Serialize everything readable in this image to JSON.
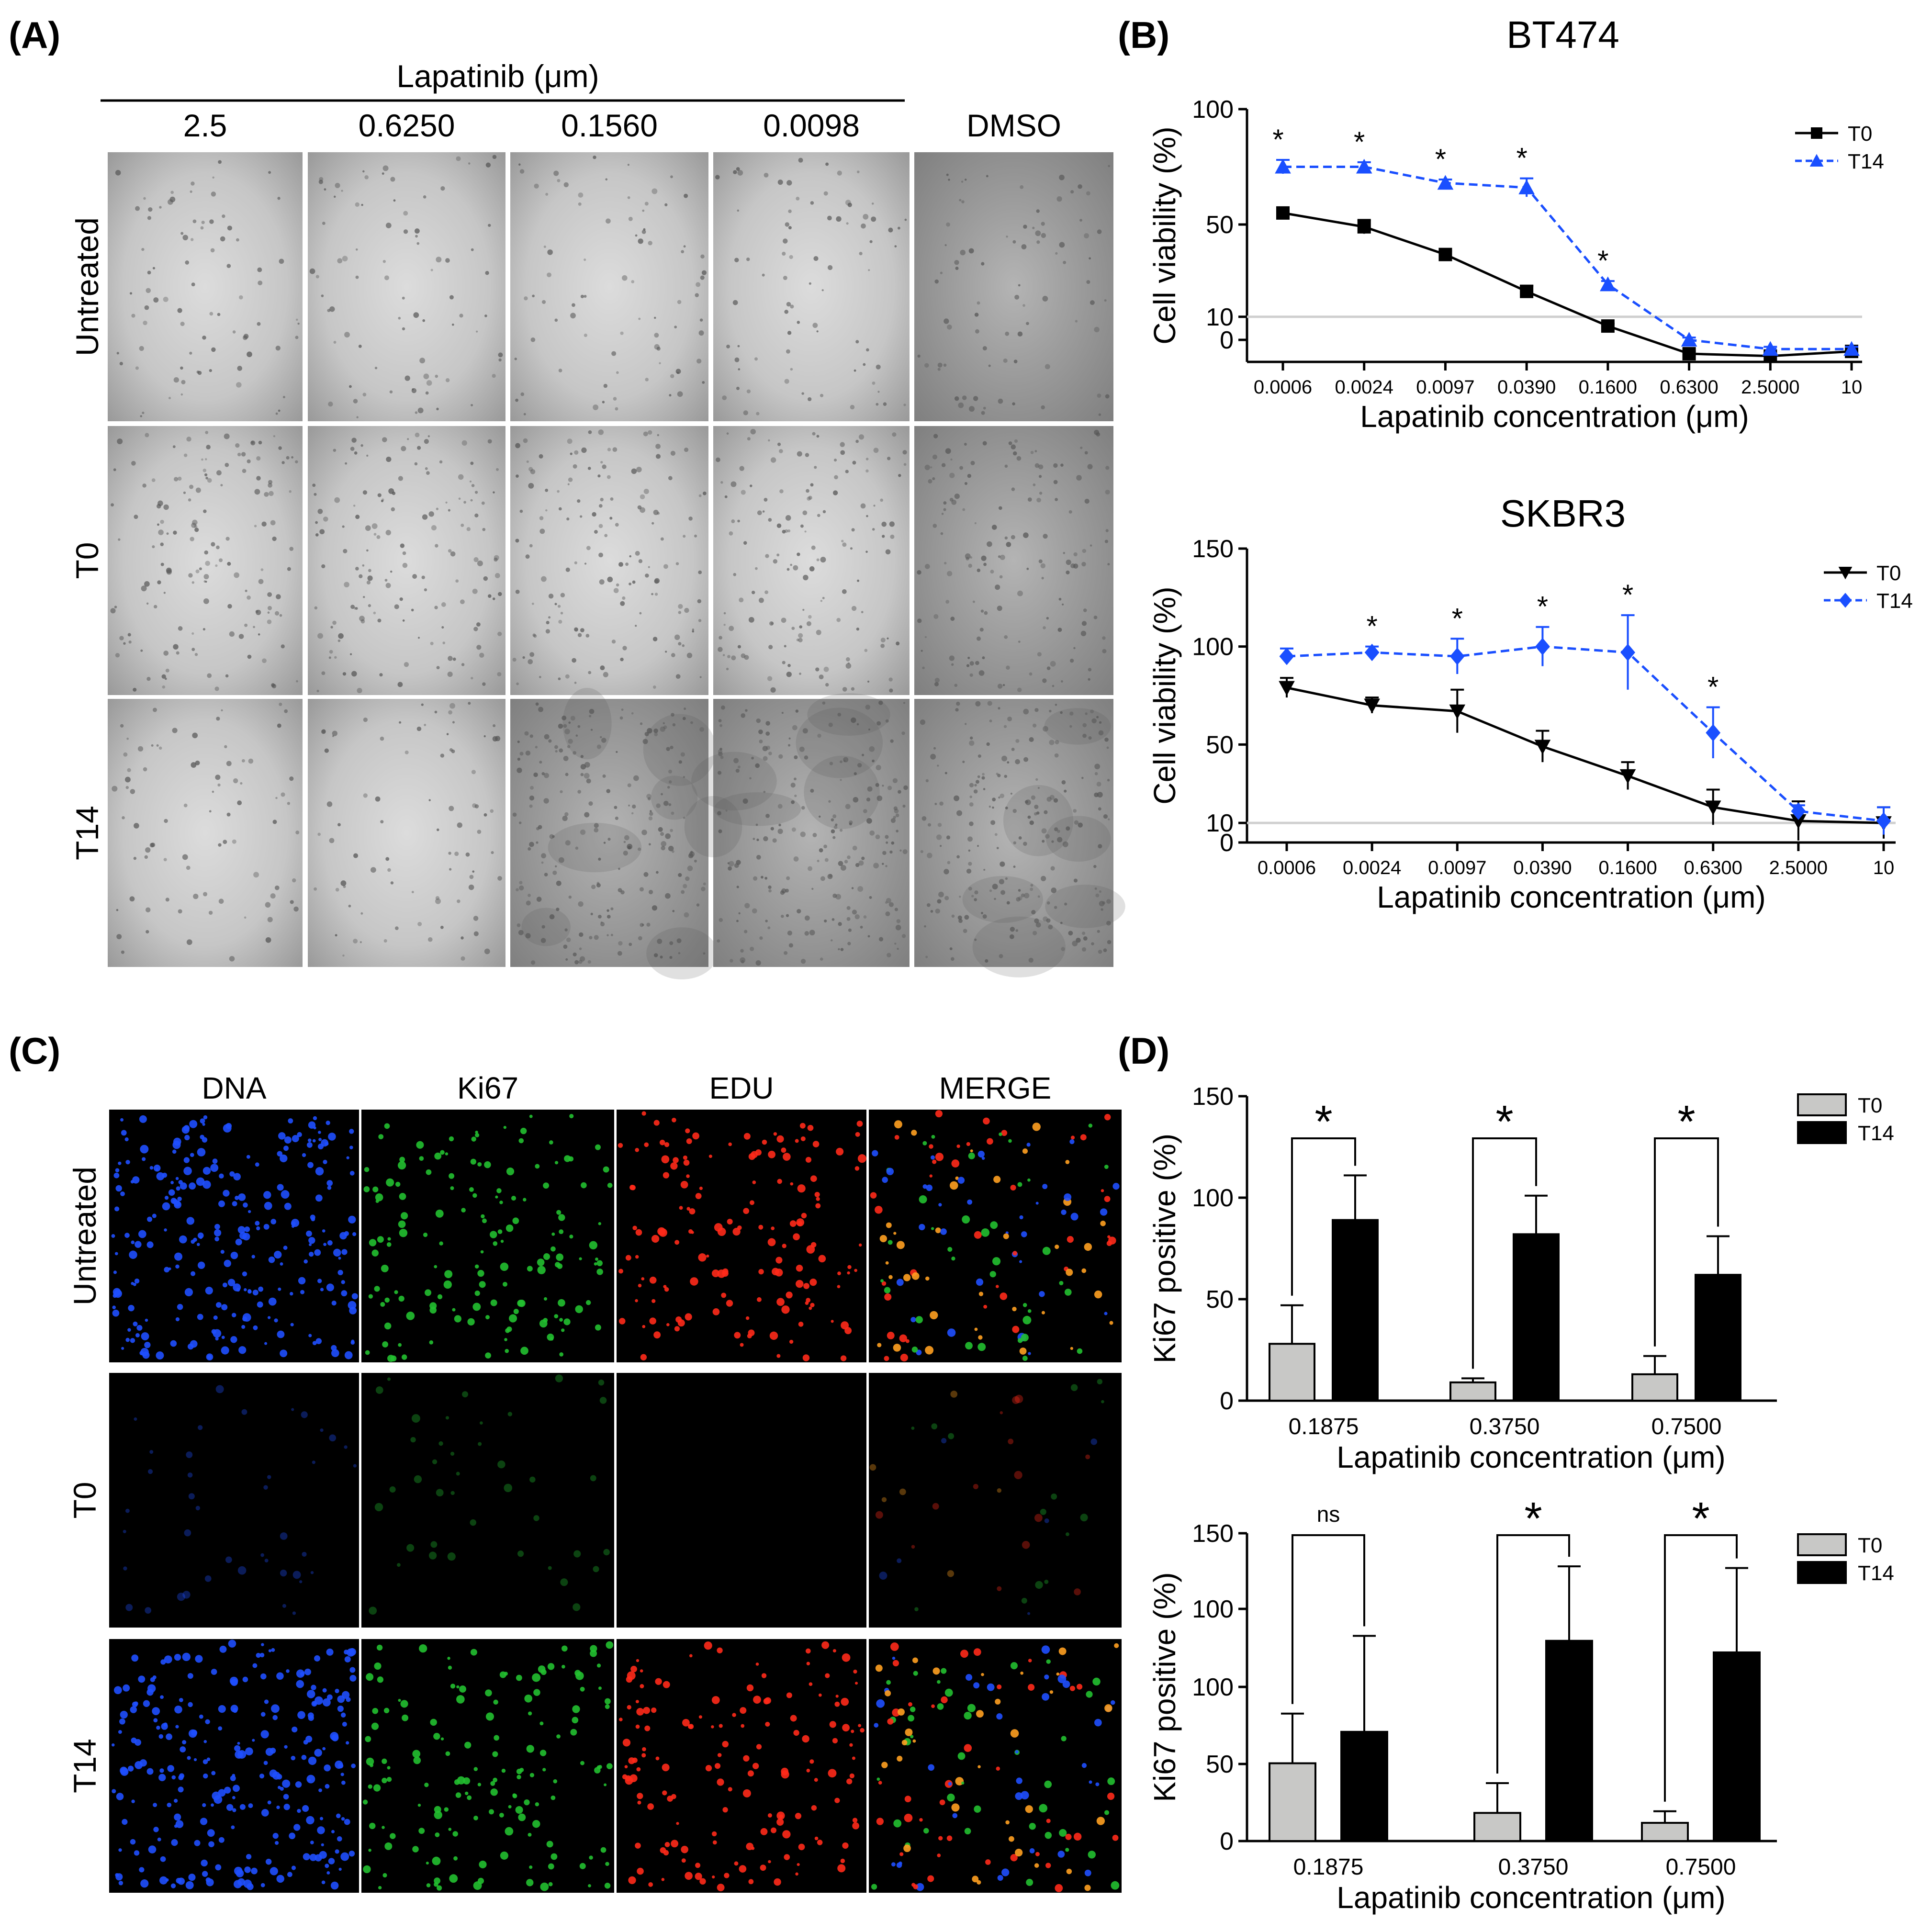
{
  "panels": {
    "A": {
      "label": "(A)",
      "header": "Lapatinib (μm)",
      "columns": [
        "2.5",
        "0.6250",
        "0.1560",
        "0.0098",
        "DMSO"
      ],
      "rows": [
        "Untreated",
        "T0",
        "T14"
      ]
    },
    "B": {
      "label": "(B)"
    },
    "C": {
      "label": "(C)",
      "columns": [
        "DNA",
        "Ki67",
        "EDU",
        "MERGE"
      ],
      "rows": [
        "Untreated",
        "T0",
        "T14"
      ]
    },
    "D": {
      "label": "(D)"
    }
  },
  "colors": {
    "t0_line": "#000000",
    "t14_line": "#1a4fff",
    "t0_bar": "#c8c8c6",
    "t14_bar": "#000000",
    "dna": "#1f4fff",
    "ki67": "#22c030",
    "edu": "#ff2a1a"
  },
  "chart_data": [
    {
      "id": "bt474",
      "type": "line",
      "title": "BT474",
      "xlabel": "Lapatinib concentration (μm)",
      "ylabel": "Cell viability (%)",
      "categories": [
        "0.0006",
        "0.0024",
        "0.0097",
        "0.0390",
        "0.1600",
        "0.6300",
        "2.5000",
        "10"
      ],
      "yticks": [
        "100",
        "50",
        "10",
        "0"
      ],
      "reference_line": 10,
      "series": [
        {
          "name": "T0",
          "marker": "square",
          "style": "solid",
          "values": [
            55,
            49,
            37,
            21,
            6,
            -6,
            -7,
            -5
          ],
          "errors": [
            1.5,
            3,
            1.5,
            2.5,
            1,
            1,
            1,
            1
          ]
        },
        {
          "name": "T14",
          "marker": "triangle-up",
          "style": "dashed",
          "values": [
            75,
            75,
            68,
            66,
            24,
            0,
            -4,
            -4
          ],
          "errors": [
            3,
            2,
            1.5,
            4,
            1.5,
            1,
            1,
            1
          ]
        }
      ],
      "annotations": [
        "*",
        "*",
        "*",
        "*",
        "*"
      ]
    },
    {
      "id": "skbr3",
      "type": "line",
      "title": "SKBR3",
      "xlabel": "Lapatinib concentration (μm)",
      "ylabel": "Cell viability (%)",
      "categories": [
        "0.0006",
        "0.0024",
        "0.0097",
        "0.0390",
        "0.1600",
        "0.6300",
        "2.5000",
        "10"
      ],
      "yticks": [
        "150",
        "100",
        "50",
        "10",
        "0"
      ],
      "reference_line": 10,
      "series": [
        {
          "name": "T0",
          "marker": "triangle-down",
          "style": "solid",
          "values": [
            79,
            70,
            67,
            49,
            34,
            18,
            11,
            10
          ],
          "errors": [
            5,
            4,
            11,
            8,
            7,
            9,
            10,
            8
          ]
        },
        {
          "name": "T14",
          "marker": "diamond",
          "style": "dashed",
          "values": [
            95,
            97,
            95,
            100,
            97,
            56,
            16,
            11
          ],
          "errors": [
            4,
            3,
            9,
            10,
            19,
            13,
            3,
            7
          ]
        }
      ],
      "annotations": [
        "*",
        "*",
        "*",
        "*",
        "*"
      ]
    },
    {
      "id": "ki67_top",
      "type": "bar",
      "xlabel": "Lapatinib concentration (μm)",
      "ylabel": "Ki67 positive (%)",
      "categories": [
        "0.1875",
        "0.3750",
        "0.7500"
      ],
      "yticks": [
        "150",
        "100",
        "50",
        "0"
      ],
      "series": [
        {
          "name": "T0",
          "values": [
            28,
            9,
            13
          ],
          "errors": [
            19,
            2,
            9
          ]
        },
        {
          "name": "T14",
          "values": [
            89,
            82,
            62
          ],
          "errors": [
            22,
            19,
            19
          ]
        }
      ],
      "significance": [
        "*",
        "*",
        "*"
      ]
    },
    {
      "id": "ki67_bottom",
      "type": "bar",
      "xlabel": "Lapatinib concentration (μm)",
      "ylabel": "Ki67 positive (%)",
      "categories": [
        "0.1875",
        "0.3750",
        "0.7500"
      ],
      "yticks": [
        "150",
        "100",
        "100",
        "50",
        "0"
      ],
      "series": [
        {
          "name": "T0",
          "values": [
            47,
            17,
            11
          ],
          "errors": [
            30,
            18,
            7
          ]
        },
        {
          "name": "T14",
          "values": [
            66,
            121,
            114
          ],
          "errors": [
            58,
            45,
            51
          ]
        }
      ],
      "significance": [
        "ns",
        "*",
        "*"
      ]
    }
  ]
}
